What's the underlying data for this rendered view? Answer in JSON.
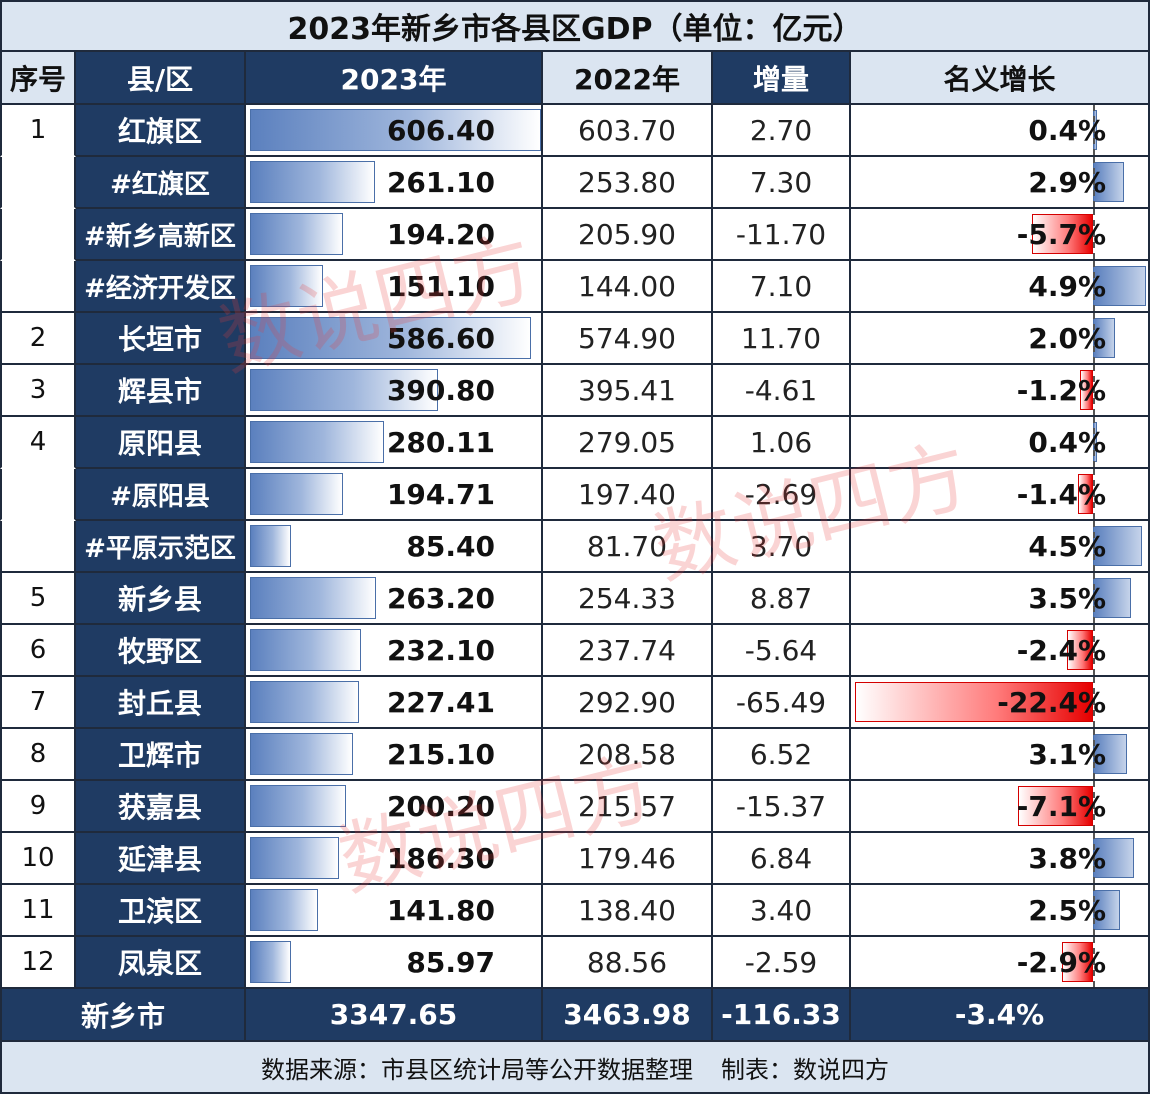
{
  "title": "2023年新乡市各县区GDP（单位：亿元）",
  "headers": {
    "seq": "序号",
    "region": "县/区",
    "gdp_2023": "2023年",
    "gdp_2022": "2022年",
    "increase": "增量",
    "growth": "名义增长"
  },
  "rows": [
    {
      "seq": "1",
      "name": "红旗区",
      "sub": false,
      "gdp_2023": "606.40",
      "gdp_2022": "603.70",
      "increase": "2.70",
      "growth": "0.4%"
    },
    {
      "seq": "",
      "name": "#红旗区",
      "sub": true,
      "gdp_2023": "261.10",
      "gdp_2022": "253.80",
      "increase": "7.30",
      "growth": "2.9%"
    },
    {
      "seq": "",
      "name": "#新乡高新区",
      "sub": true,
      "gdp_2023": "194.20",
      "gdp_2022": "205.90",
      "increase": "-11.70",
      "growth": "-5.7%"
    },
    {
      "seq": "",
      "name": "#经济开发区",
      "sub": true,
      "gdp_2023": "151.10",
      "gdp_2022": "144.00",
      "increase": "7.10",
      "growth": "4.9%"
    },
    {
      "seq": "2",
      "name": "长垣市",
      "sub": false,
      "gdp_2023": "586.60",
      "gdp_2022": "574.90",
      "increase": "11.70",
      "growth": "2.0%"
    },
    {
      "seq": "3",
      "name": "辉县市",
      "sub": false,
      "gdp_2023": "390.80",
      "gdp_2022": "395.41",
      "increase": "-4.61",
      "growth": "-1.2%"
    },
    {
      "seq": "4",
      "name": "原阳县",
      "sub": false,
      "gdp_2023": "280.11",
      "gdp_2022": "279.05",
      "increase": "1.06",
      "growth": "0.4%"
    },
    {
      "seq": "",
      "name": "#原阳县",
      "sub": true,
      "gdp_2023": "194.71",
      "gdp_2022": "197.40",
      "increase": "-2.69",
      "growth": "-1.4%"
    },
    {
      "seq": "",
      "name": "#平原示范区",
      "sub": true,
      "gdp_2023": "85.40",
      "gdp_2022": "81.70",
      "increase": "3.70",
      "growth": "4.5%"
    },
    {
      "seq": "5",
      "name": "新乡县",
      "sub": false,
      "gdp_2023": "263.20",
      "gdp_2022": "254.33",
      "increase": "8.87",
      "growth": "3.5%"
    },
    {
      "seq": "6",
      "name": "牧野区",
      "sub": false,
      "gdp_2023": "232.10",
      "gdp_2022": "237.74",
      "increase": "-5.64",
      "growth": "-2.4%"
    },
    {
      "seq": "7",
      "name": "封丘县",
      "sub": false,
      "gdp_2023": "227.41",
      "gdp_2022": "292.90",
      "increase": "-65.49",
      "growth": "-22.4%"
    },
    {
      "seq": "8",
      "name": "卫辉市",
      "sub": false,
      "gdp_2023": "215.10",
      "gdp_2022": "208.58",
      "increase": "6.52",
      "growth": "3.1%"
    },
    {
      "seq": "9",
      "name": "获嘉县",
      "sub": false,
      "gdp_2023": "200.20",
      "gdp_2022": "215.57",
      "increase": "-15.37",
      "growth": "-7.1%"
    },
    {
      "seq": "10",
      "name": "延津县",
      "sub": false,
      "gdp_2023": "186.30",
      "gdp_2022": "179.46",
      "increase": "6.84",
      "growth": "3.8%"
    },
    {
      "seq": "11",
      "name": "卫滨区",
      "sub": false,
      "gdp_2023": "141.80",
      "gdp_2022": "138.40",
      "increase": "3.40",
      "growth": "2.5%"
    },
    {
      "seq": "12",
      "name": "凤泉区",
      "sub": false,
      "gdp_2023": "85.97",
      "gdp_2022": "88.56",
      "increase": "-2.59",
      "growth": "-2.9%"
    }
  ],
  "total": {
    "name": "新乡市",
    "gdp_2023": "3347.65",
    "gdp_2022": "3463.98",
    "increase": "-116.33",
    "growth": "-3.4%"
  },
  "footer": {
    "source": "数据来源：市县区统计局等公开数据整理",
    "maker": "制表：数说四方"
  },
  "watermark": "数说四方",
  "colors": {
    "header_dark": "#1f3b63",
    "header_light": "#dbe5f1",
    "bar_positive": "#5b80be",
    "bar_negative": "#e60000"
  },
  "chart_data": {
    "type": "table",
    "title": "2023年新乡市各县区GDP（单位：亿元）",
    "columns": [
      "序号",
      "县/区",
      "2023年",
      "2022年",
      "增量",
      "名义增长"
    ],
    "categories": [
      "红旗区",
      "#红旗区",
      "#新乡高新区",
      "#经济开发区",
      "长垣市",
      "辉县市",
      "原阳县",
      "#原阳县",
      "#平原示范区",
      "新乡县",
      "牧野区",
      "封丘县",
      "卫辉市",
      "获嘉县",
      "延津县",
      "卫滨区",
      "凤泉区"
    ],
    "series": [
      {
        "name": "2023年",
        "values": [
          606.4,
          261.1,
          194.2,
          151.1,
          586.6,
          390.8,
          280.11,
          194.71,
          85.4,
          263.2,
          232.1,
          227.41,
          215.1,
          200.2,
          186.3,
          141.8,
          85.97
        ]
      },
      {
        "name": "2022年",
        "values": [
          603.7,
          253.8,
          205.9,
          144.0,
          574.9,
          395.41,
          279.05,
          197.4,
          81.7,
          254.33,
          237.74,
          292.9,
          208.58,
          215.57,
          179.46,
          138.4,
          88.56
        ]
      },
      {
        "name": "增量",
        "values": [
          2.7,
          7.3,
          -11.7,
          7.1,
          11.7,
          -4.61,
          1.06,
          -2.69,
          3.7,
          8.87,
          -5.64,
          -65.49,
          6.52,
          -15.37,
          6.84,
          3.4,
          -2.59
        ]
      },
      {
        "name": "名义增长",
        "values": [
          0.4,
          2.9,
          -5.7,
          4.9,
          2.0,
          -1.2,
          0.4,
          -1.4,
          4.5,
          3.5,
          -2.4,
          -22.4,
          3.1,
          -7.1,
          3.8,
          2.5,
          -2.9
        ]
      }
    ],
    "totals": {
      "2023年": 3347.65,
      "2022年": 3463.98,
      "增量": -116.33,
      "名义增长": -3.4
    }
  }
}
